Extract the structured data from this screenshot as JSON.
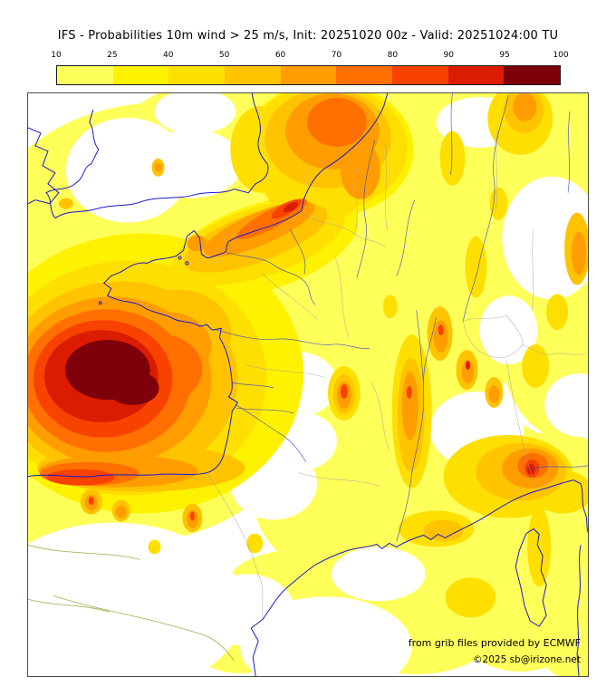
{
  "title": "IFS - Probabilities 10m wind > 25 m/s, Init: 20251020 00z - Valid: 20251024:00 TU",
  "colorbar": {
    "tick_labels": [
      "10",
      "25",
      "40",
      "50",
      "60",
      "70",
      "80",
      "90",
      "95",
      "100"
    ],
    "colors": [
      "#ffff5a",
      "#fff200",
      "#ffdf00",
      "#ffc300",
      "#ff9d00",
      "#ff7000",
      "#f74200",
      "#dc1c00",
      "#7d000a"
    ]
  },
  "map_colors": {
    "background": "#ffffff",
    "coastline": "#1a1acc",
    "river": "#3344cc",
    "river_secondary": "#96a439",
    "border": "#a0a0a0"
  },
  "attribution": {
    "source": "from grib files provided by ECMWF",
    "copyright": "©2025 sb@irizone.net"
  }
}
